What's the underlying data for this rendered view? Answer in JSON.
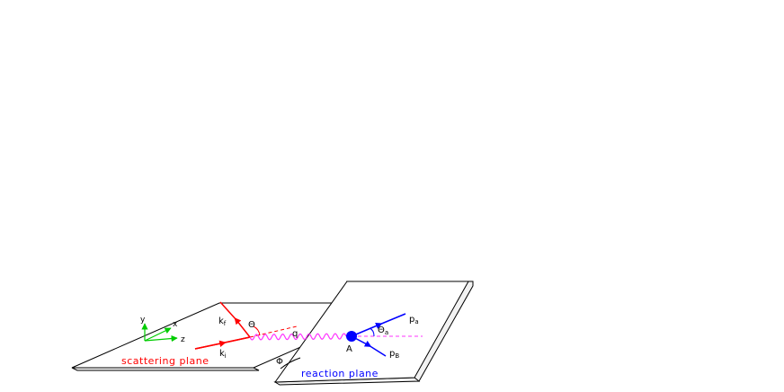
{
  "diagram": {
    "scattering_plane_label": "scattering plane",
    "reaction_plane_label": "reaction plane",
    "axes": {
      "y": "y",
      "x": "x",
      "z": "z"
    },
    "kinematics": {
      "k_f": "k",
      "k_f_sub": "f",
      "k_i": "k",
      "k_i_sub": "i",
      "theta": "Θ",
      "q": "q",
      "phi": "Φ",
      "target": "A",
      "p_a": "p",
      "p_a_sub": "a",
      "p_b": "p",
      "p_b_sub": "B",
      "theta_a": "Θ",
      "theta_a_sub": "a"
    },
    "colors": {
      "scattering": "#ff0000",
      "reaction": "#0000ff",
      "virtual_photon": "#ff33ff",
      "axes": "#00cc00",
      "outline": "#000000"
    }
  }
}
